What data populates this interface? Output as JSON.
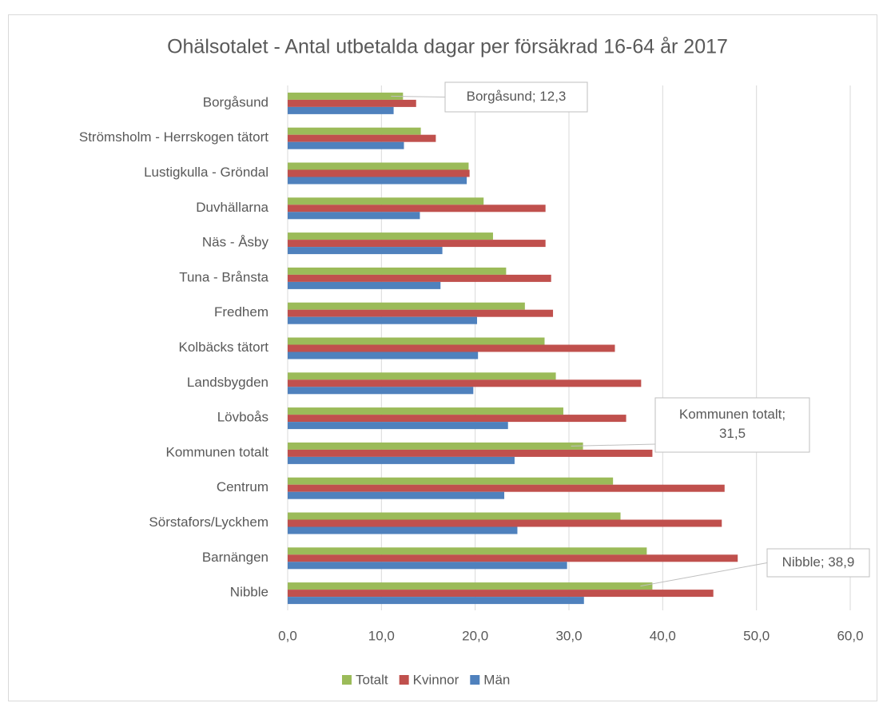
{
  "chart_data": {
    "type": "bar",
    "orientation": "horizontal",
    "title": "Ohälsotalet - Antal utbetalda dagar per försäkrad 16-64 år 2017",
    "categories": [
      "Borgåsund",
      "Strömsholm - Herrskogen tätort",
      "Lustigkulla - Gröndal",
      "Duvhällarna",
      "Näs - Åsby",
      "Tuna - Brånsta",
      "Fredhem",
      "Kolbäcks tätort",
      "Landsbygden",
      "Lövboås",
      "Kommunen totalt",
      "Centrum",
      "Sörstafors/Lyckhem",
      "Barnängen",
      "Nibble"
    ],
    "series": [
      {
        "name": "Totalt",
        "color": "#9bbb59",
        "values": [
          12.3,
          14.2,
          19.3,
          20.9,
          21.9,
          23.3,
          25.3,
          27.4,
          28.6,
          29.4,
          31.5,
          34.7,
          35.5,
          38.3,
          38.9
        ],
        "value_labels": [
          "Borgåsund; 12,3",
          null,
          null,
          null,
          null,
          null,
          null,
          null,
          null,
          null,
          "Kommunen totalt; 31,5",
          null,
          null,
          null,
          "Nibble; 38,9"
        ]
      },
      {
        "name": "Kvinnor",
        "color": "#c0504d",
        "values": [
          13.7,
          15.8,
          19.4,
          27.5,
          27.5,
          28.1,
          28.3,
          34.9,
          37.7,
          36.1,
          38.9,
          46.6,
          46.3,
          48.0,
          45.4
        ]
      },
      {
        "name": "Män",
        "color": "#4f81bd",
        "values": [
          11.3,
          12.4,
          19.1,
          14.1,
          16.5,
          16.3,
          20.2,
          20.3,
          19.8,
          23.5,
          24.2,
          23.1,
          24.5,
          29.8,
          31.6
        ]
      }
    ],
    "xlim": [
      0,
      60
    ],
    "xticks": [
      {
        "value": 0,
        "label": "0,0"
      },
      {
        "value": 10,
        "label": "10,0"
      },
      {
        "value": 20,
        "label": "20,0"
      },
      {
        "value": 30,
        "label": "30,0"
      },
      {
        "value": 40,
        "label": "40,0"
      },
      {
        "value": 50,
        "label": "50,0"
      },
      {
        "value": 60,
        "label": "60,0"
      }
    ],
    "grid": true,
    "legend": "bottom"
  }
}
